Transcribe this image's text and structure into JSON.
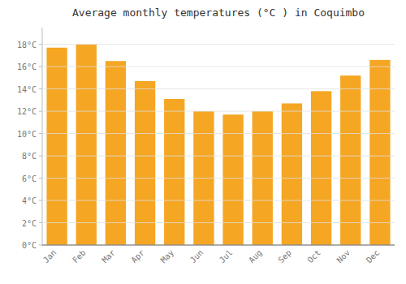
{
  "chart_data": {
    "type": "bar",
    "title": "Average monthly temperatures (°C ) in Coquimbo",
    "categories": [
      "Jan",
      "Feb",
      "Mar",
      "Apr",
      "May",
      "Jun",
      "Jul",
      "Aug",
      "Sep",
      "Oct",
      "Nov",
      "Dec"
    ],
    "values": [
      17.7,
      18.0,
      16.5,
      14.7,
      13.1,
      12.0,
      11.7,
      12.0,
      12.7,
      13.8,
      15.2,
      16.6
    ],
    "color": "#F5A623",
    "ylim": [
      0,
      19.5
    ],
    "yticks": [
      {
        "value": 0,
        "label": "0°C"
      },
      {
        "value": 2,
        "label": "2°C"
      },
      {
        "value": 4,
        "label": "4°C"
      },
      {
        "value": 6,
        "label": "6°C"
      },
      {
        "value": 8,
        "label": "8°C"
      },
      {
        "value": 10,
        "label": "10°C"
      },
      {
        "value": 12,
        "label": "12°C"
      },
      {
        "value": 14,
        "label": "14°C"
      },
      {
        "value": 16,
        "label": "16°C"
      },
      {
        "value": 18,
        "label": "18°C"
      }
    ],
    "grid": true
  }
}
